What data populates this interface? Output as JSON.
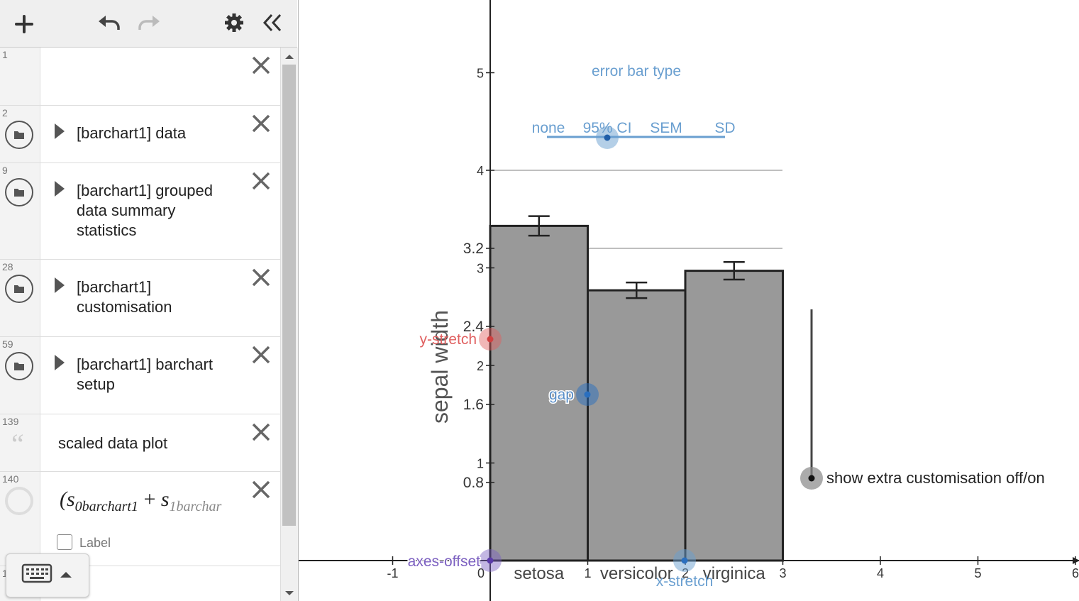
{
  "toolbar": {
    "add_icon": "plus-icon",
    "undo_icon": "undo-icon",
    "redo_icon": "redo-icon",
    "settings_icon": "gear-icon",
    "collapse_icon": "double-chevron-left-icon"
  },
  "expressions": [
    {
      "num": "1",
      "text": ""
    },
    {
      "num": "2",
      "text": "[barchart1] data"
    },
    {
      "num": "9",
      "lines": [
        "[barchart1] grouped",
        "data summary",
        "statistics"
      ]
    },
    {
      "num": "28",
      "lines": [
        "[barchart1]",
        "customisation"
      ]
    },
    {
      "num": "59",
      "lines": [
        "[barchart1] barchart",
        "setup"
      ]
    },
    {
      "num": "139",
      "text": "scaled data plot"
    },
    {
      "num": "140",
      "math": "(s",
      "sub0": "0barchart1",
      "plus": "+",
      "math2": "s",
      "sub1": "1barchar",
      "label": "Label"
    },
    {
      "num": "1"
    }
  ],
  "graph": {
    "ylabel": "sepal width",
    "y_ticks": [
      "5",
      "4",
      "3.2",
      "3",
      "2.4",
      "2",
      "1.6",
      "1",
      "0.8"
    ],
    "x_ticks": [
      "-1",
      "0",
      "1",
      "2",
      "3",
      "4",
      "5",
      "6"
    ],
    "categories": [
      "setosa",
      "versicolor",
      "virginica"
    ],
    "error_bar_title": "error bar type",
    "error_bar_options": [
      "none",
      "95% CI",
      "SEM",
      "SD"
    ],
    "labels": {
      "y_stretch": "y-stretch",
      "gap": "gap",
      "axes_offset": "axes-offset",
      "x_stretch": "x-stretch",
      "toggle": "show extra customisation off/on"
    },
    "colors": {
      "bar": "#999999",
      "axis": "#222222",
      "blue": "#6a9fd0",
      "red": "#e06060",
      "purple": "#7b5fc0"
    }
  },
  "chart_data": {
    "type": "bar",
    "categories": [
      "setosa",
      "versicolor",
      "virginica"
    ],
    "values": [
      3.43,
      2.77,
      2.97
    ],
    "error_low": [
      3.33,
      2.69,
      2.88
    ],
    "error_high": [
      3.53,
      2.85,
      3.06
    ],
    "ylabel": "sepal width",
    "xlim": [
      -1,
      6
    ],
    "ylim": [
      0,
      5.5
    ],
    "grid": "horizontal lines at 3.2 and 4"
  }
}
